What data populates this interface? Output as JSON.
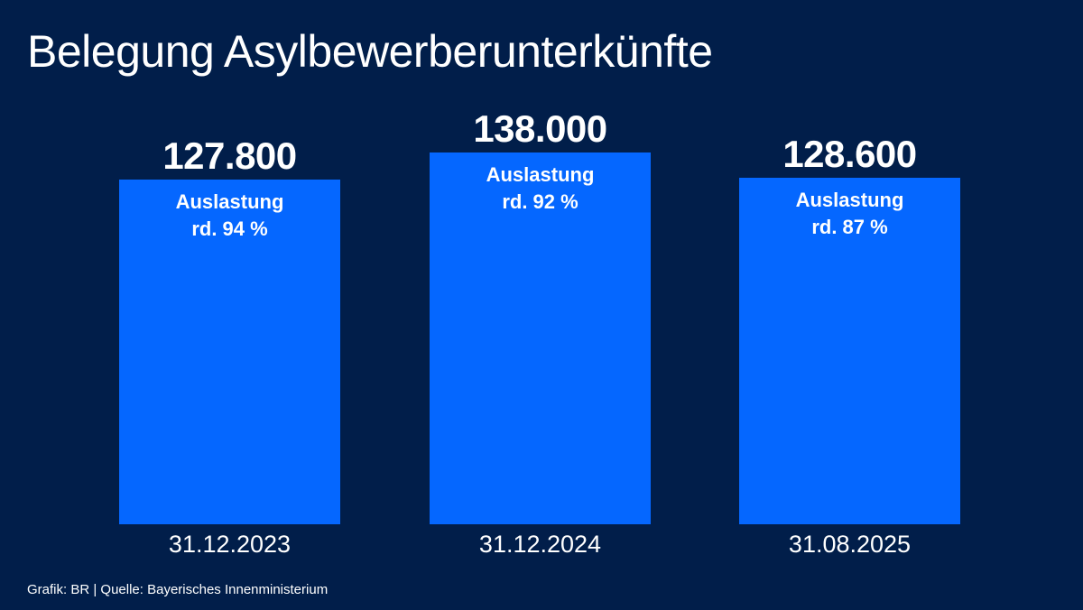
{
  "chart_data": {
    "type": "bar",
    "title": "Belegung Asylbewerberunterkünfte",
    "categories": [
      "31.12.2023",
      "31.12.2024",
      "31.08.2025"
    ],
    "values": [
      127800,
      138000,
      128600
    ],
    "value_labels": [
      "127.800",
      "138.000",
      "128.600"
    ],
    "annotations": [
      [
        "Auslastung",
        "rd. 94 %"
      ],
      [
        "Auslastung",
        "rd. 92 %"
      ],
      [
        "Auslastung",
        "rd. 87 %"
      ]
    ],
    "xlabel": "",
    "ylabel": "",
    "ylim": [
      0,
      138000
    ],
    "grid": false
  },
  "source": "Grafik: BR | Quelle: Bayerisches Innenministerium",
  "colors": {
    "background": "#011e4a",
    "bar": "#0567ff",
    "text": "#ffffff"
  }
}
